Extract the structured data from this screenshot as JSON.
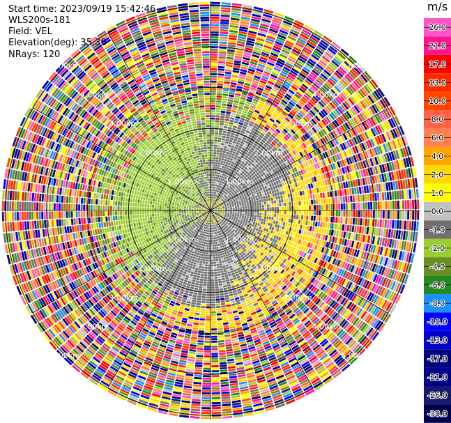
{
  "header": {
    "start_time": "Start time: 2023/09/19 15:42:46",
    "instrument": "WLS200s-181",
    "field": "Field: VEL",
    "elevation": "Elevation(deg): 35.30",
    "nrays": "NRays: 120"
  },
  "colorbar": {
    "unit": "m/s",
    "ticks": [
      "26.0",
      "21.0",
      "17.0",
      "13.0",
      "10.0",
      "8.0",
      "6.0",
      "4.0",
      "2.0",
      "1.0",
      "0.0",
      "-1.0",
      "-2.0",
      "-4.0",
      "-6.0",
      "-8.0",
      "-10.0",
      "-13.0",
      "-17.0",
      "-21.0",
      "-26.0",
      "-30.0"
    ],
    "colors": [
      "#ff55c8",
      "#ff1493",
      "#ff0000",
      "#ff2a00",
      "#ff4500",
      "#ff6347",
      "#ff7f50",
      "#ffa500",
      "#ffd700",
      "#ffff00",
      "#c0c0c0",
      "#707070",
      "#9acd32",
      "#6b8e23",
      "#228b22",
      "#1e90ff",
      "#0000ff",
      "#0000cd",
      "#000080",
      "#00008b",
      "#191970",
      "#000050"
    ]
  },
  "chart_data": {
    "type": "ppi",
    "field": "VEL",
    "units": "m/s",
    "nrays": 120,
    "elevation_deg": 35.3,
    "range_rings_km": [
      1.0,
      2.0,
      3.0,
      4.0,
      5.0
    ],
    "ring_label": "km",
    "ring_label_text": [
      "1.00km",
      "2.00km",
      "3.00km",
      "4.00km",
      "5.00km"
    ],
    "vmin": -30.0,
    "vmax": 26.0
  }
}
